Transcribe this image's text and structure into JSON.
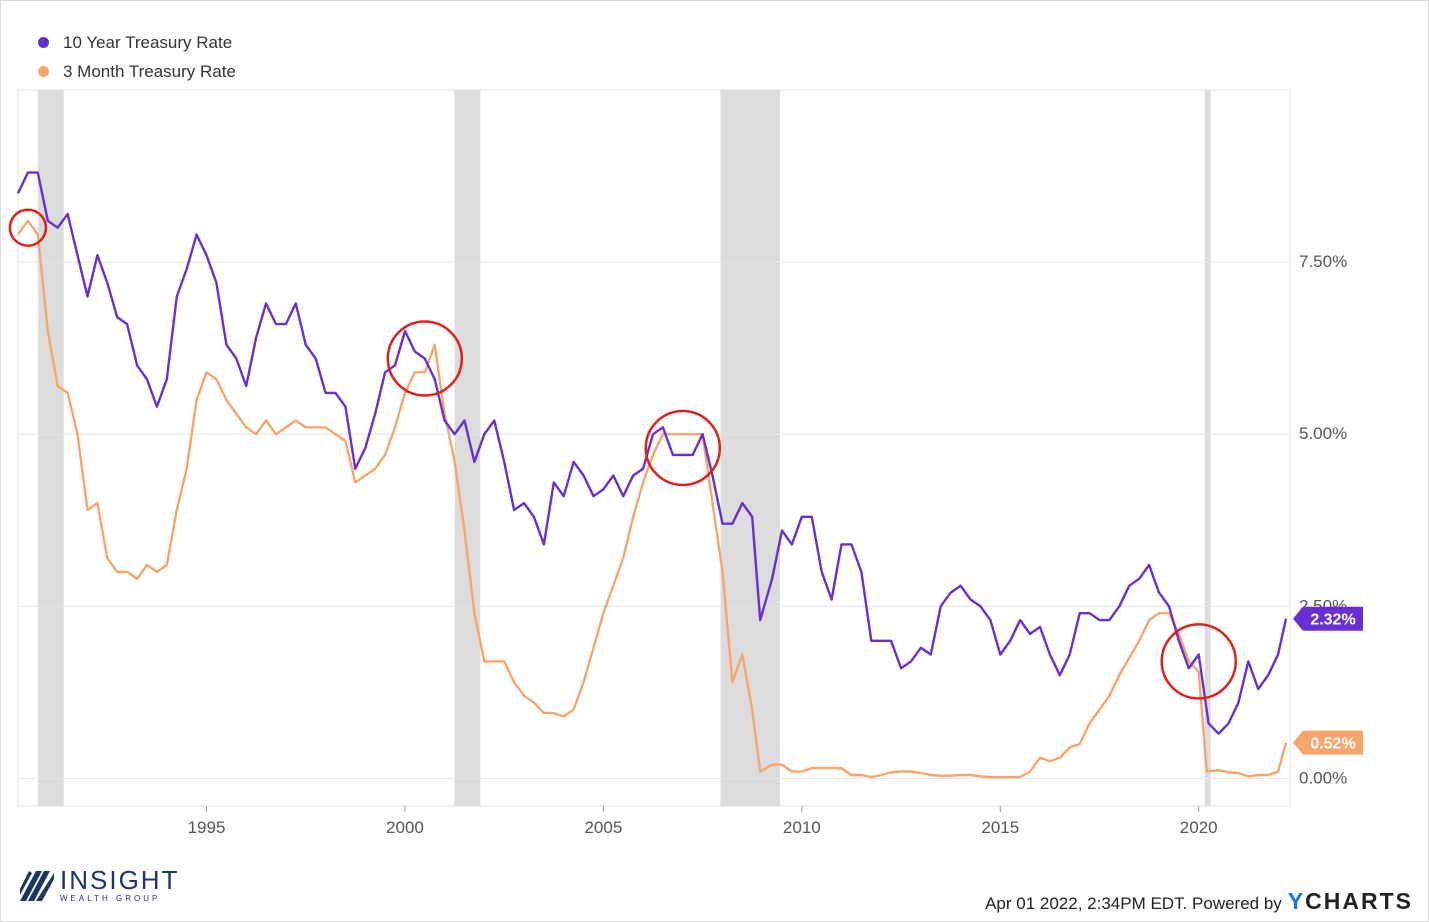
{
  "legend": [
    {
      "name": "10 Year Treasury Rate",
      "color": "#6a2fd4"
    },
    {
      "name": "3 Month Treasury Rate",
      "color": "#f7a56a"
    }
  ],
  "footer": {
    "timestamp": "Apr 01 2022, 2:34PM EDT. Powered by",
    "brand_y": "Y",
    "brand_rest": "CHARTS"
  },
  "logo": {
    "name": "INSIGHT",
    "subtitle": "WEALTH GROUP",
    "icon": "diagonal-stripes-logo-icon"
  },
  "chart_data": {
    "type": "line",
    "xlim": [
      1990.25,
      2022.3
    ],
    "ylim": [
      -0.4,
      10.0
    ],
    "y_ticks": [
      {
        "value": 0.0,
        "label": "0.00%"
      },
      {
        "value": 2.5,
        "label": "2.50%"
      },
      {
        "value": 5.0,
        "label": "5.00%"
      },
      {
        "value": 7.5,
        "label": "7.50%"
      }
    ],
    "x_ticks": [
      {
        "value": 1995,
        "label": "1995"
      },
      {
        "value": 2000,
        "label": "2000"
      },
      {
        "value": 2005,
        "label": "2005"
      },
      {
        "value": 2010,
        "label": "2010"
      },
      {
        "value": 2015,
        "label": "2015"
      },
      {
        "value": 2020,
        "label": "2020"
      }
    ],
    "grid": "horizontal",
    "legend_position": "top-left",
    "recessions": [
      [
        1990.75,
        1991.4
      ],
      [
        2001.25,
        2001.9
      ],
      [
        2007.95,
        2009.45
      ],
      [
        2020.15,
        2020.3
      ]
    ],
    "highlight_circles": [
      [
        1990.5,
        8.0
      ],
      [
        2000.5,
        6.1
      ],
      [
        2007.0,
        4.8
      ],
      [
        2020.0,
        1.7
      ]
    ],
    "series": [
      {
        "name": "10 Year Treasury Rate",
        "color": "#6a2fd4",
        "end_label": "2.32%",
        "points": [
          [
            1990.25,
            8.5
          ],
          [
            1990.5,
            8.8
          ],
          [
            1990.75,
            8.8
          ],
          [
            1991.0,
            8.1
          ],
          [
            1991.25,
            8.0
          ],
          [
            1991.5,
            8.2
          ],
          [
            1991.75,
            7.6
          ],
          [
            1992.0,
            7.0
          ],
          [
            1992.25,
            7.6
          ],
          [
            1992.5,
            7.2
          ],
          [
            1992.75,
            6.7
          ],
          [
            1993.0,
            6.6
          ],
          [
            1993.25,
            6.0
          ],
          [
            1993.5,
            5.8
          ],
          [
            1993.75,
            5.4
          ],
          [
            1994.0,
            5.8
          ],
          [
            1994.25,
            7.0
          ],
          [
            1994.5,
            7.4
          ],
          [
            1994.75,
            7.9
          ],
          [
            1995.0,
            7.6
          ],
          [
            1995.25,
            7.2
          ],
          [
            1995.5,
            6.3
          ],
          [
            1995.75,
            6.1
          ],
          [
            1996.0,
            5.7
          ],
          [
            1996.25,
            6.4
          ],
          [
            1996.5,
            6.9
          ],
          [
            1996.75,
            6.6
          ],
          [
            1997.0,
            6.6
          ],
          [
            1997.25,
            6.9
          ],
          [
            1997.5,
            6.3
          ],
          [
            1997.75,
            6.1
          ],
          [
            1998.0,
            5.6
          ],
          [
            1998.25,
            5.6
          ],
          [
            1998.5,
            5.4
          ],
          [
            1998.75,
            4.5
          ],
          [
            1999.0,
            4.8
          ],
          [
            1999.25,
            5.3
          ],
          [
            1999.5,
            5.9
          ],
          [
            1999.75,
            6.0
          ],
          [
            2000.0,
            6.5
          ],
          [
            2000.25,
            6.2
          ],
          [
            2000.5,
            6.1
          ],
          [
            2000.75,
            5.8
          ],
          [
            2001.0,
            5.2
          ],
          [
            2001.25,
            5.0
          ],
          [
            2001.5,
            5.2
          ],
          [
            2001.75,
            4.6
          ],
          [
            2002.0,
            5.0
          ],
          [
            2002.25,
            5.2
          ],
          [
            2002.5,
            4.6
          ],
          [
            2002.75,
            3.9
          ],
          [
            2003.0,
            4.0
          ],
          [
            2003.25,
            3.8
          ],
          [
            2003.5,
            3.4
          ],
          [
            2003.75,
            4.3
          ],
          [
            2004.0,
            4.1
          ],
          [
            2004.25,
            4.6
          ],
          [
            2004.5,
            4.4
          ],
          [
            2004.75,
            4.1
          ],
          [
            2005.0,
            4.2
          ],
          [
            2005.25,
            4.4
          ],
          [
            2005.5,
            4.1
          ],
          [
            2005.75,
            4.4
          ],
          [
            2006.0,
            4.5
          ],
          [
            2006.25,
            5.0
          ],
          [
            2006.5,
            5.1
          ],
          [
            2006.75,
            4.7
          ],
          [
            2007.0,
            4.7
          ],
          [
            2007.25,
            4.7
          ],
          [
            2007.5,
            5.0
          ],
          [
            2007.75,
            4.4
          ],
          [
            2008.0,
            3.7
          ],
          [
            2008.25,
            3.7
          ],
          [
            2008.5,
            4.0
          ],
          [
            2008.75,
            3.8
          ],
          [
            2008.95,
            2.3
          ],
          [
            2009.25,
            2.9
          ],
          [
            2009.5,
            3.6
          ],
          [
            2009.75,
            3.4
          ],
          [
            2010.0,
            3.8
          ],
          [
            2010.25,
            3.8
          ],
          [
            2010.5,
            3.0
          ],
          [
            2010.75,
            2.6
          ],
          [
            2011.0,
            3.4
          ],
          [
            2011.25,
            3.4
          ],
          [
            2011.5,
            3.0
          ],
          [
            2011.75,
            2.0
          ],
          [
            2012.0,
            2.0
          ],
          [
            2012.25,
            2.0
          ],
          [
            2012.5,
            1.6
          ],
          [
            2012.75,
            1.7
          ],
          [
            2013.0,
            1.9
          ],
          [
            2013.25,
            1.8
          ],
          [
            2013.5,
            2.5
          ],
          [
            2013.75,
            2.7
          ],
          [
            2014.0,
            2.8
          ],
          [
            2014.25,
            2.6
          ],
          [
            2014.5,
            2.5
          ],
          [
            2014.75,
            2.3
          ],
          [
            2015.0,
            1.8
          ],
          [
            2015.25,
            2.0
          ],
          [
            2015.5,
            2.3
          ],
          [
            2015.75,
            2.1
          ],
          [
            2016.0,
            2.2
          ],
          [
            2016.25,
            1.8
          ],
          [
            2016.5,
            1.5
          ],
          [
            2016.75,
            1.8
          ],
          [
            2017.0,
            2.4
          ],
          [
            2017.25,
            2.4
          ],
          [
            2017.5,
            2.3
          ],
          [
            2017.75,
            2.3
          ],
          [
            2018.0,
            2.5
          ],
          [
            2018.25,
            2.8
          ],
          [
            2018.5,
            2.9
          ],
          [
            2018.75,
            3.1
          ],
          [
            2019.0,
            2.7
          ],
          [
            2019.25,
            2.5
          ],
          [
            2019.5,
            2.0
          ],
          [
            2019.75,
            1.6
          ],
          [
            2020.0,
            1.8
          ],
          [
            2020.25,
            0.8
          ],
          [
            2020.5,
            0.65
          ],
          [
            2020.75,
            0.8
          ],
          [
            2021.0,
            1.1
          ],
          [
            2021.25,
            1.7
          ],
          [
            2021.5,
            1.3
          ],
          [
            2021.75,
            1.5
          ],
          [
            2022.0,
            1.8
          ],
          [
            2022.2,
            2.32
          ]
        ]
      },
      {
        "name": "3 Month Treasury Rate",
        "color": "#f7a56a",
        "end_label": "0.52%",
        "points": [
          [
            1990.25,
            7.9
          ],
          [
            1990.5,
            8.1
          ],
          [
            1990.75,
            7.9
          ],
          [
            1991.0,
            6.5
          ],
          [
            1991.25,
            5.7
          ],
          [
            1991.5,
            5.6
          ],
          [
            1991.75,
            5.0
          ],
          [
            1992.0,
            3.9
          ],
          [
            1992.25,
            4.0
          ],
          [
            1992.5,
            3.2
          ],
          [
            1992.75,
            3.0
          ],
          [
            1993.0,
            3.0
          ],
          [
            1993.25,
            2.9
          ],
          [
            1993.5,
            3.1
          ],
          [
            1993.75,
            3.0
          ],
          [
            1994.0,
            3.1
          ],
          [
            1994.25,
            3.9
          ],
          [
            1994.5,
            4.5
          ],
          [
            1994.75,
            5.5
          ],
          [
            1995.0,
            5.9
          ],
          [
            1995.25,
            5.8
          ],
          [
            1995.5,
            5.5
          ],
          [
            1995.75,
            5.3
          ],
          [
            1996.0,
            5.1
          ],
          [
            1996.25,
            5.0
          ],
          [
            1996.5,
            5.2
          ],
          [
            1996.75,
            5.0
          ],
          [
            1997.0,
            5.1
          ],
          [
            1997.25,
            5.2
          ],
          [
            1997.5,
            5.1
          ],
          [
            1997.75,
            5.1
          ],
          [
            1998.0,
            5.1
          ],
          [
            1998.25,
            5.0
          ],
          [
            1998.5,
            4.9
          ],
          [
            1998.75,
            4.3
          ],
          [
            1999.0,
            4.4
          ],
          [
            1999.25,
            4.5
          ],
          [
            1999.5,
            4.7
          ],
          [
            1999.75,
            5.1
          ],
          [
            2000.0,
            5.6
          ],
          [
            2000.25,
            5.9
          ],
          [
            2000.5,
            5.9
          ],
          [
            2000.75,
            6.3
          ],
          [
            2001.0,
            5.3
          ],
          [
            2001.25,
            4.6
          ],
          [
            2001.5,
            3.6
          ],
          [
            2001.75,
            2.4
          ],
          [
            2002.0,
            1.7
          ],
          [
            2002.25,
            1.7
          ],
          [
            2002.5,
            1.7
          ],
          [
            2002.75,
            1.4
          ],
          [
            2003.0,
            1.2
          ],
          [
            2003.25,
            1.1
          ],
          [
            2003.5,
            0.95
          ],
          [
            2003.75,
            0.95
          ],
          [
            2004.0,
            0.9
          ],
          [
            2004.25,
            1.0
          ],
          [
            2004.5,
            1.4
          ],
          [
            2004.75,
            1.9
          ],
          [
            2005.0,
            2.4
          ],
          [
            2005.25,
            2.8
          ],
          [
            2005.5,
            3.2
          ],
          [
            2005.75,
            3.8
          ],
          [
            2006.0,
            4.3
          ],
          [
            2006.25,
            4.7
          ],
          [
            2006.5,
            5.0
          ],
          [
            2006.75,
            5.0
          ],
          [
            2007.0,
            5.0
          ],
          [
            2007.25,
            5.0
          ],
          [
            2007.5,
            5.0
          ],
          [
            2007.75,
            4.0
          ],
          [
            2008.0,
            3.0
          ],
          [
            2008.25,
            1.4
          ],
          [
            2008.5,
            1.8
          ],
          [
            2008.75,
            1.0
          ],
          [
            2008.95,
            0.1
          ],
          [
            2009.25,
            0.2
          ],
          [
            2009.5,
            0.2
          ],
          [
            2009.75,
            0.1
          ],
          [
            2010.0,
            0.1
          ],
          [
            2010.25,
            0.15
          ],
          [
            2010.5,
            0.15
          ],
          [
            2010.75,
            0.15
          ],
          [
            2011.0,
            0.15
          ],
          [
            2011.25,
            0.05
          ],
          [
            2011.5,
            0.05
          ],
          [
            2011.75,
            0.02
          ],
          [
            2012.0,
            0.05
          ],
          [
            2012.25,
            0.09
          ],
          [
            2012.5,
            0.1
          ],
          [
            2012.75,
            0.1
          ],
          [
            2013.0,
            0.08
          ],
          [
            2013.25,
            0.05
          ],
          [
            2013.5,
            0.04
          ],
          [
            2013.75,
            0.04
          ],
          [
            2014.0,
            0.05
          ],
          [
            2014.25,
            0.05
          ],
          [
            2014.5,
            0.03
          ],
          [
            2014.75,
            0.02
          ],
          [
            2015.0,
            0.02
          ],
          [
            2015.25,
            0.02
          ],
          [
            2015.5,
            0.02
          ],
          [
            2015.75,
            0.1
          ],
          [
            2016.0,
            0.3
          ],
          [
            2016.25,
            0.25
          ],
          [
            2016.5,
            0.3
          ],
          [
            2016.75,
            0.45
          ],
          [
            2017.0,
            0.5
          ],
          [
            2017.25,
            0.8
          ],
          [
            2017.5,
            1.0
          ],
          [
            2017.75,
            1.2
          ],
          [
            2018.0,
            1.5
          ],
          [
            2018.25,
            1.75
          ],
          [
            2018.5,
            2.0
          ],
          [
            2018.75,
            2.3
          ],
          [
            2019.0,
            2.4
          ],
          [
            2019.25,
            2.4
          ],
          [
            2019.5,
            2.1
          ],
          [
            2019.75,
            1.7
          ],
          [
            2020.0,
            1.55
          ],
          [
            2020.2,
            0.1
          ],
          [
            2020.5,
            0.12
          ],
          [
            2020.75,
            0.09
          ],
          [
            2021.0,
            0.08
          ],
          [
            2021.25,
            0.03
          ],
          [
            2021.5,
            0.05
          ],
          [
            2021.75,
            0.05
          ],
          [
            2022.0,
            0.1
          ],
          [
            2022.2,
            0.52
          ]
        ]
      }
    ]
  }
}
